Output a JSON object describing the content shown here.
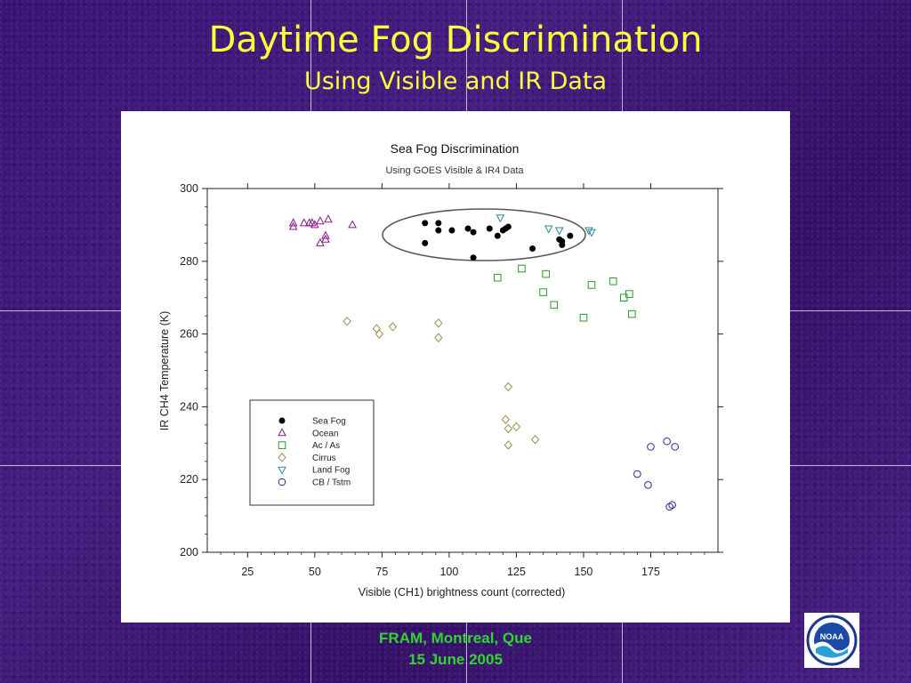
{
  "slide": {
    "title": "Daytime Fog Discrimination",
    "subtitle": "Using Visible and IR Data",
    "footer_line1": "FRAM, Montreal, Que",
    "footer_line2": "15 June 2005",
    "logo_text": "NOAA",
    "logo_icon": "noaa-logo"
  },
  "chart_data": {
    "type": "scatter",
    "title": "Sea Fog Discrimination",
    "subtitle": "Using GOES Visible & IR4 Data",
    "xlabel": "Visible (CH1) brightness count (corrected)",
    "ylabel": "IR CH4 Temperature (K)",
    "xlim": [
      10,
      200
    ],
    "ylim": [
      200,
      300
    ],
    "xticks": [
      25,
      50,
      75,
      100,
      125,
      150,
      175
    ],
    "yticks": [
      200,
      220,
      240,
      260,
      280,
      300
    ],
    "grid": false,
    "legend_position": "lower-left",
    "annotation": "ellipse around Sea Fog cluster",
    "series": [
      {
        "name": "Sea Fog",
        "marker": "filled-circle",
        "color": "#000000",
        "points": [
          [
            91,
            290.5
          ],
          [
            96,
            290.5
          ],
          [
            96,
            288.5
          ],
          [
            91,
            285
          ],
          [
            101,
            288.5
          ],
          [
            107,
            289
          ],
          [
            109,
            288
          ],
          [
            109,
            281
          ],
          [
            115,
            289
          ],
          [
            118,
            287
          ],
          [
            120,
            288.5
          ],
          [
            121,
            289
          ],
          [
            122,
            289.5
          ],
          [
            131,
            283.5
          ],
          [
            141,
            286
          ],
          [
            142,
            284.5
          ],
          [
            142,
            285.5
          ],
          [
            145,
            287
          ]
        ]
      },
      {
        "name": "Ocean",
        "marker": "open-triangle-up",
        "color": "#8a1a8a",
        "points": [
          [
            42,
            290.5
          ],
          [
            42,
            289.5
          ],
          [
            46,
            290.5
          ],
          [
            48,
            290.5
          ],
          [
            49,
            290.5
          ],
          [
            50,
            290
          ],
          [
            52,
            291
          ],
          [
            52,
            285
          ],
          [
            54,
            287
          ],
          [
            54,
            286
          ],
          [
            55,
            291.5
          ],
          [
            64,
            290
          ]
        ]
      },
      {
        "name": "Ac / As",
        "marker": "open-square",
        "color": "#2a9a2a",
        "points": [
          [
            118,
            275.5
          ],
          [
            127,
            278
          ],
          [
            135,
            271.5
          ],
          [
            136,
            276.5
          ],
          [
            139,
            268
          ],
          [
            150,
            264.5
          ],
          [
            153,
            273.5
          ],
          [
            161,
            274.5
          ],
          [
            165,
            270
          ],
          [
            167,
            271
          ],
          [
            168,
            265.5
          ]
        ]
      },
      {
        "name": "Cirrus",
        "marker": "open-diamond",
        "color": "#a08a50",
        "points": [
          [
            62,
            263.5
          ],
          [
            73,
            261.5
          ],
          [
            74,
            260
          ],
          [
            79,
            262
          ],
          [
            96,
            263
          ],
          [
            96,
            259
          ],
          [
            121,
            236.5
          ],
          [
            122,
            245.5
          ],
          [
            122,
            234
          ],
          [
            122,
            229.5
          ],
          [
            125,
            234.5
          ],
          [
            132,
            231
          ]
        ]
      },
      {
        "name": "Land Fog",
        "marker": "open-triangle-down",
        "color": "#2a8a9a",
        "points": [
          [
            119,
            292
          ],
          [
            137,
            289
          ],
          [
            141,
            288.5
          ],
          [
            152,
            288.5
          ],
          [
            153,
            288
          ]
        ]
      },
      {
        "name": "CB / Tstm",
        "marker": "open-circle",
        "color": "#2a2a9a",
        "points": [
          [
            170,
            221.5
          ],
          [
            174,
            218.5
          ],
          [
            175,
            229
          ],
          [
            181,
            230.5
          ],
          [
            182,
            212.5
          ],
          [
            183,
            213
          ],
          [
            184,
            229
          ]
        ]
      }
    ]
  }
}
